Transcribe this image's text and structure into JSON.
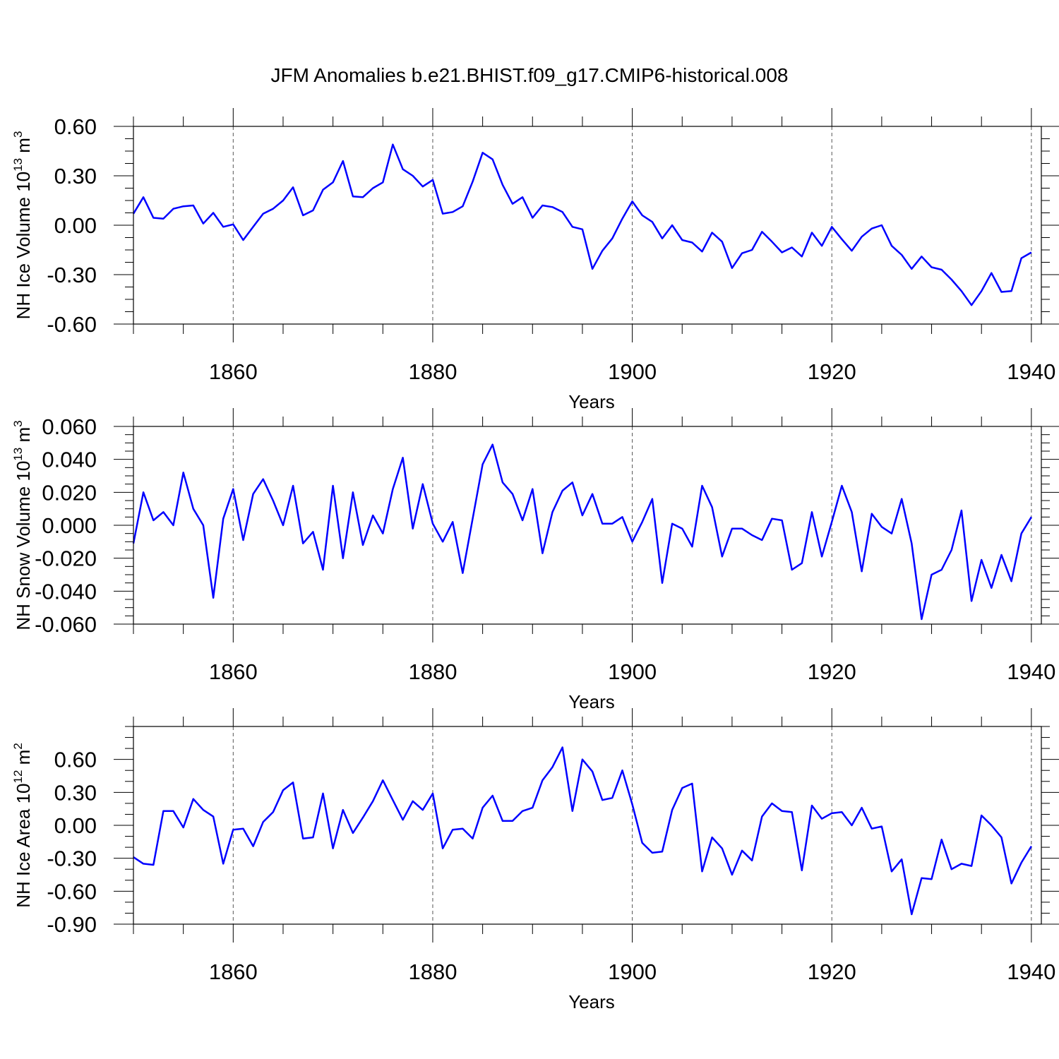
{
  "title": "JFM Anomalies b.e21.BHIST.f09_g17.CMIP6-historical.008",
  "colors": {
    "line": "#0000ff",
    "axis": "#000000",
    "grid": "#555555"
  },
  "chart_data": [
    {
      "type": "line",
      "ylabel": "NH Ice Volume 10",
      "ylabel_sup": "13",
      "ylabel_unit": " m",
      "ylabel_unit_sup": "3",
      "xlabel": "Years",
      "xlim": [
        1850,
        1941
      ],
      "ylim": [
        -0.6,
        0.6
      ],
      "xticks": [
        1860,
        1880,
        1900,
        1920,
        1940
      ],
      "xtick_labels": [
        "1860",
        "1880",
        "1900",
        "1920",
        "1940"
      ],
      "yticks": [
        -0.6,
        -0.3,
        0.0,
        0.3,
        0.6
      ],
      "ytick_labels": [
        "-0.60",
        "-0.30",
        "0.00",
        "0.30",
        "0.60"
      ],
      "ytick_minor": 0.075,
      "x_start": 1850,
      "values": [
        0.07,
        0.17,
        0.045,
        0.04,
        0.1,
        0.115,
        0.12,
        0.01,
        0.075,
        -0.01,
        0.005,
        -0.09,
        -0.01,
        0.07,
        0.1,
        0.15,
        0.23,
        0.06,
        0.09,
        0.215,
        0.26,
        0.39,
        0.175,
        0.17,
        0.225,
        0.26,
        0.49,
        0.34,
        0.3,
        0.235,
        0.275,
        0.07,
        0.08,
        0.115,
        0.265,
        0.44,
        0.4,
        0.245,
        0.13,
        0.17,
        0.045,
        0.12,
        0.11,
        0.08,
        -0.01,
        -0.025,
        -0.265,
        -0.155,
        -0.08,
        0.04,
        0.145,
        0.06,
        0.02,
        -0.08,
        0.0,
        -0.09,
        -0.105,
        -0.16,
        -0.045,
        -0.1,
        -0.26,
        -0.17,
        -0.15,
        -0.04,
        -0.1,
        -0.165,
        -0.135,
        -0.19,
        -0.045,
        -0.125,
        -0.01,
        -0.085,
        -0.155,
        -0.07,
        -0.02,
        0.0,
        -0.125,
        -0.18,
        -0.265,
        -0.19,
        -0.255,
        -0.27,
        -0.33,
        -0.4,
        -0.485,
        -0.4,
        -0.29,
        -0.405,
        -0.4,
        -0.2,
        -0.165
      ]
    },
    {
      "type": "line",
      "ylabel": "NH Snow Volume 10",
      "ylabel_sup": "13",
      "ylabel_unit": " m",
      "ylabel_unit_sup": "3",
      "xlabel": "Years",
      "xlim": [
        1850,
        1941
      ],
      "ylim": [
        -0.06,
        0.06
      ],
      "xticks": [
        1860,
        1880,
        1900,
        1920,
        1940
      ],
      "xtick_labels": [
        "1860",
        "1880",
        "1900",
        "1920",
        "1940"
      ],
      "yticks": [
        -0.06,
        -0.04,
        -0.02,
        0.0,
        0.02,
        0.04,
        0.06
      ],
      "ytick_labels": [
        "-0.060",
        "-0.040",
        "-0.020",
        "0.000",
        "0.020",
        "0.040",
        "0.060"
      ],
      "ytick_minor": 0.005,
      "x_start": 1850,
      "values": [
        -0.011,
        0.02,
        0.003,
        0.008,
        0.0,
        0.032,
        0.01,
        0.0,
        -0.044,
        0.004,
        0.022,
        -0.009,
        0.019,
        0.028,
        0.015,
        0.0,
        0.024,
        -0.011,
        -0.004,
        -0.027,
        0.024,
        -0.02,
        0.02,
        -0.012,
        0.006,
        -0.005,
        0.022,
        0.041,
        -0.002,
        0.025,
        0.001,
        -0.01,
        0.002,
        -0.029,
        0.004,
        0.037,
        0.049,
        0.026,
        0.019,
        0.003,
        0.022,
        -0.017,
        0.008,
        0.021,
        0.026,
        0.006,
        0.019,
        0.001,
        0.001,
        0.005,
        -0.01,
        0.002,
        0.016,
        -0.035,
        0.001,
        -0.002,
        -0.013,
        0.024,
        0.011,
        -0.019,
        -0.002,
        -0.002,
        -0.006,
        -0.009,
        0.004,
        0.003,
        -0.027,
        -0.023,
        0.008,
        -0.019,
        0.002,
        0.024,
        0.008,
        -0.028,
        0.007,
        -0.001,
        -0.005,
        0.016,
        -0.011,
        -0.057,
        -0.03,
        -0.027,
        -0.015,
        0.009,
        -0.046,
        -0.021,
        -0.038,
        -0.018,
        -0.034,
        -0.005,
        0.005
      ]
    },
    {
      "type": "line",
      "ylabel": "NH Ice Area 10",
      "ylabel_sup": "12",
      "ylabel_unit": " m",
      "ylabel_unit_sup": "2",
      "xlabel": "Years",
      "xlim": [
        1850,
        1941
      ],
      "ylim": [
        -0.9,
        0.9
      ],
      "xticks": [
        1860,
        1880,
        1900,
        1920,
        1940
      ],
      "xtick_labels": [
        "1860",
        "1880",
        "1900",
        "1920",
        "1940"
      ],
      "yticks": [
        -0.9,
        -0.6,
        -0.3,
        0.0,
        0.3,
        0.6
      ],
      "ytick_labels": [
        "-0.90",
        "-0.60",
        "-0.30",
        "0.00",
        "0.30",
        "0.60"
      ],
      "ytick_minor": 0.1,
      "x_start": 1850,
      "values": [
        -0.29,
        -0.35,
        -0.36,
        0.13,
        0.13,
        -0.02,
        0.24,
        0.14,
        0.08,
        -0.35,
        -0.04,
        -0.03,
        -0.19,
        0.03,
        0.12,
        0.32,
        0.39,
        -0.12,
        -0.11,
        0.29,
        -0.21,
        0.14,
        -0.07,
        0.07,
        0.22,
        0.41,
        0.23,
        0.05,
        0.22,
        0.14,
        0.29,
        -0.21,
        -0.04,
        -0.03,
        -0.12,
        0.16,
        0.27,
        0.04,
        0.04,
        0.13,
        0.16,
        0.41,
        0.53,
        0.71,
        0.13,
        0.6,
        0.49,
        0.23,
        0.25,
        0.5,
        0.19,
        -0.16,
        -0.25,
        -0.24,
        0.14,
        0.34,
        0.38,
        -0.42,
        -0.11,
        -0.21,
        -0.45,
        -0.23,
        -0.32,
        0.08,
        0.2,
        0.13,
        0.12,
        -0.41,
        0.18,
        0.06,
        0.11,
        0.12,
        0.0,
        0.16,
        -0.03,
        -0.01,
        -0.42,
        -0.31,
        -0.81,
        -0.48,
        -0.49,
        -0.13,
        -0.4,
        -0.35,
        -0.37,
        0.09,
        0.0,
        -0.11,
        -0.53,
        -0.34,
        -0.19
      ]
    }
  ]
}
